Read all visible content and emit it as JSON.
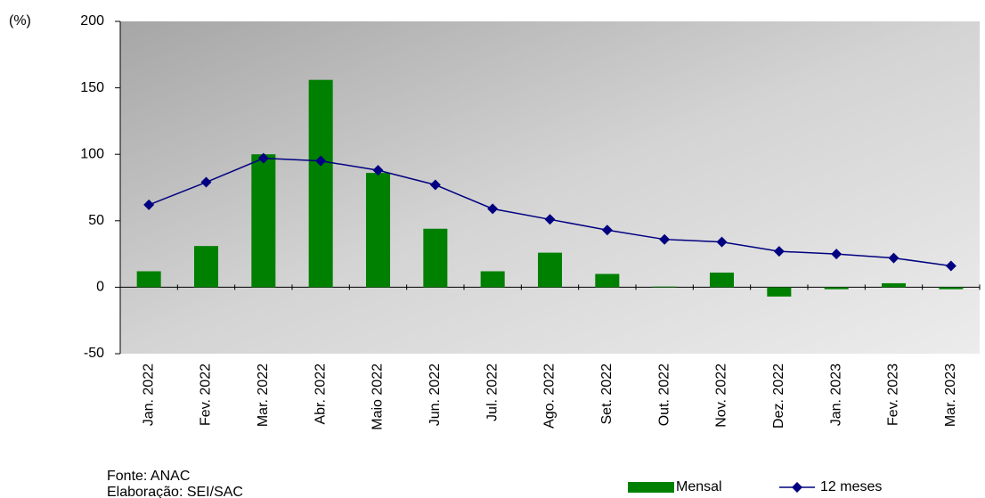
{
  "chart_data": {
    "type": "bar_line",
    "y_label": "(%)",
    "categories": [
      "Jan. 2022",
      "Fev. 2022",
      "Mar. 2022",
      "Abr. 2022",
      "Maio 2022",
      "Jun. 2022",
      "Jul. 2022",
      "Ago. 2022",
      "Set. 2022",
      "Out. 2022",
      "Nov. 2022",
      "Dez. 2022",
      "Jan. 2023",
      "Fev. 2023",
      "Mar. 2023"
    ],
    "series": [
      {
        "name": "Mensal",
        "type": "bar",
        "color": "#008000",
        "values": [
          12,
          31,
          100,
          156,
          86,
          44,
          12,
          26,
          10,
          0.5,
          11,
          -7,
          -1.5,
          3,
          -1.5
        ]
      },
      {
        "name": "12 meses",
        "type": "line",
        "color": "#000080",
        "values": [
          62,
          79,
          97,
          95,
          88,
          77,
          59,
          51,
          43,
          36,
          34,
          27,
          25,
          22,
          16
        ]
      }
    ],
    "ylim": [
      -50,
      200
    ],
    "yticks": [
      -50,
      0,
      50,
      100,
      150,
      200
    ],
    "source": "Fonte: ANAC",
    "credit": "Elaboração: SEI/SAC"
  }
}
